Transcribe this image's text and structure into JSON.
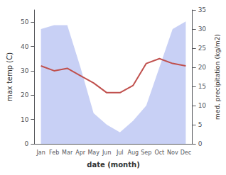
{
  "chart_data": {
    "type": "line",
    "categories": [
      "Jan",
      "Feb",
      "Mar",
      "Apr",
      "May",
      "Jun",
      "Jul",
      "Aug",
      "Sep",
      "Oct",
      "Nov",
      "Dec"
    ],
    "xlabel": "date (month)",
    "ylabel": "max temp (C)",
    "y2label": "med. precipitation (kg/m2)",
    "series": [
      {
        "type": "line",
        "color": "#c0504d",
        "values": [
          32,
          30,
          31,
          28,
          25,
          21,
          21,
          24,
          33,
          35,
          33,
          32
        ]
      },
      {
        "type": "area",
        "axis": "y2",
        "color": "#c8d0f5",
        "values": [
          30,
          31,
          31,
          20,
          8,
          5,
          3,
          6,
          10,
          20,
          30,
          32
        ]
      }
    ],
    "ylim": [
      0,
      55
    ],
    "yticks": [
      0,
      10,
      20,
      30,
      40,
      50
    ],
    "y2lim": [
      0,
      35
    ],
    "y2ticks": [
      0,
      5,
      10,
      15,
      20,
      25,
      30,
      35
    ],
    "grid": false
  }
}
